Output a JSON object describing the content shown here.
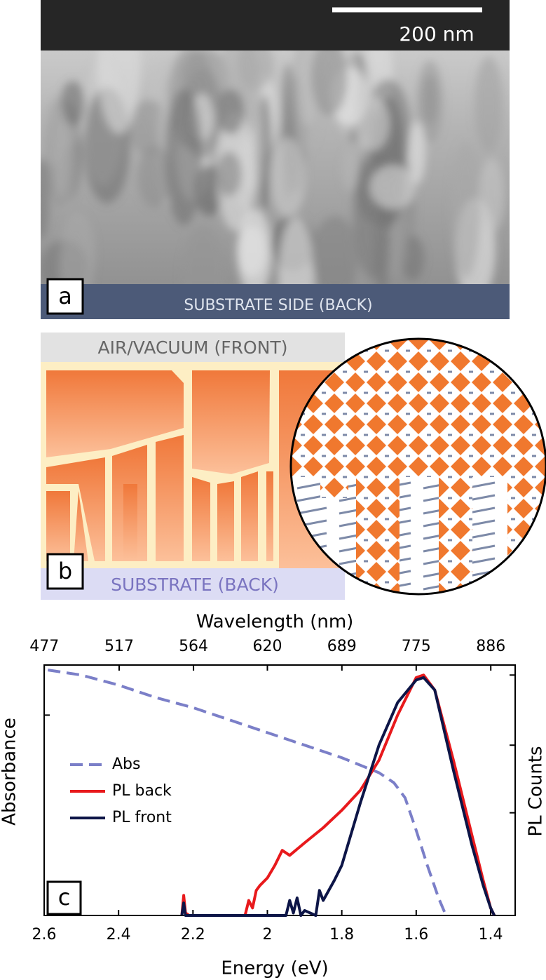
{
  "panel_a": {
    "label": "a",
    "scale_bar": "200 nm",
    "caption": "SUBSTRATE SIDE (BACK)"
  },
  "panel_b": {
    "label": "b",
    "top": "AIR/VACUUM (FRONT)",
    "bottom": "SUBSTRATE (BACK)"
  },
  "chart_data": {
    "type": "line",
    "panel_label": "c",
    "x_label": "Energy (eV)",
    "x2_label": "Wavelength (nm)",
    "y_label": "Absorbance",
    "y2_label": "PL Counts",
    "xlim": [
      2.6,
      1.334
    ],
    "xticks": [
      2.6,
      2.4,
      2.2,
      2.0,
      1.8,
      1.6,
      1.4
    ],
    "x2ticks": [
      477,
      517,
      564,
      620,
      689,
      775,
      886
    ],
    "ylim": [
      0,
      1
    ],
    "yticks": [
      0.8
    ],
    "y2lim": [
      0,
      1
    ],
    "y2ticks": [
      0.96,
      0.68,
      0.41
    ],
    "legend": "left",
    "series": [
      {
        "name": "Abs",
        "color": "#7b7fc8",
        "linestyle": "dashed",
        "x": [
          2.59,
          2.5,
          2.4,
          2.3,
          2.2,
          2.1,
          2.0,
          1.9,
          1.8,
          1.75,
          1.7,
          1.66,
          1.63,
          1.6,
          1.57,
          1.54,
          1.52
        ],
        "values": [
          0.98,
          0.96,
          0.92,
          0.87,
          0.83,
          0.78,
          0.73,
          0.68,
          0.63,
          0.6,
          0.57,
          0.53,
          0.47,
          0.34,
          0.2,
          0.07,
          0
        ]
      },
      {
        "name": "PL back",
        "color": "#e8191c",
        "linestyle": "solid",
        "x": [
          2.23,
          2.225,
          2.22,
          2.21,
          2.18,
          2.06,
          2.05,
          2.04,
          2.03,
          2.02,
          2.0,
          1.98,
          1.96,
          1.94,
          1.9,
          1.85,
          1.8,
          1.75,
          1.7,
          1.65,
          1.6,
          1.58,
          1.55,
          1.5,
          1.45,
          1.42,
          1.4,
          1.39
        ],
        "values": [
          0,
          0.08,
          0.01,
          0,
          0,
          0,
          0.06,
          0.03,
          0.1,
          0.12,
          0.15,
          0.2,
          0.26,
          0.24,
          0.29,
          0.35,
          0.42,
          0.5,
          0.62,
          0.8,
          0.95,
          0.96,
          0.9,
          0.62,
          0.32,
          0.14,
          0.03,
          0
        ]
      },
      {
        "name": "PL front",
        "color": "#0d1547",
        "linestyle": "solid",
        "x": [
          2.23,
          2.225,
          2.22,
          2.19,
          1.95,
          1.94,
          1.93,
          1.92,
          1.91,
          1.9,
          1.87,
          1.86,
          1.85,
          1.82,
          1.8,
          1.75,
          1.7,
          1.65,
          1.6,
          1.58,
          1.55,
          1.5,
          1.45,
          1.42,
          1.4,
          1.39
        ],
        "values": [
          0,
          0.05,
          0,
          0,
          0,
          0.06,
          0.01,
          0.07,
          0,
          0.02,
          0,
          0.1,
          0.06,
          0.14,
          0.2,
          0.45,
          0.68,
          0.85,
          0.94,
          0.95,
          0.9,
          0.58,
          0.28,
          0.12,
          0.03,
          0
        ]
      }
    ]
  }
}
